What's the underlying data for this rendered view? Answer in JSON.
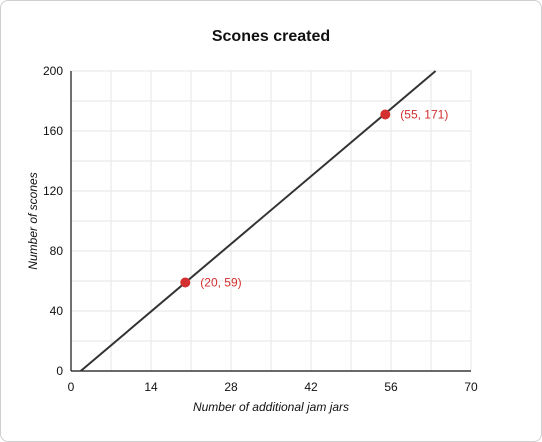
{
  "chart_data": {
    "type": "line",
    "title": "Scones created",
    "xlabel": "Number of additional jam jars",
    "ylabel": "Number of scones",
    "xlim": [
      0,
      70
    ],
    "ylim": [
      0,
      200
    ],
    "x_ticks": [
      0,
      14,
      28,
      42,
      56,
      70
    ],
    "y_ticks": [
      0,
      40,
      80,
      120,
      160,
      200
    ],
    "grid": true,
    "series": [
      {
        "points": [
          [
            1.7,
            0
          ],
          [
            63.8,
            200
          ]
        ],
        "color": "#333333"
      }
    ],
    "highlighted_points": [
      {
        "x": 20,
        "y": 59,
        "label": "(20, 59)",
        "color": "#d32f2f"
      },
      {
        "x": 55,
        "y": 171,
        "label": "(55, 171)",
        "color": "#d32f2f"
      }
    ]
  }
}
